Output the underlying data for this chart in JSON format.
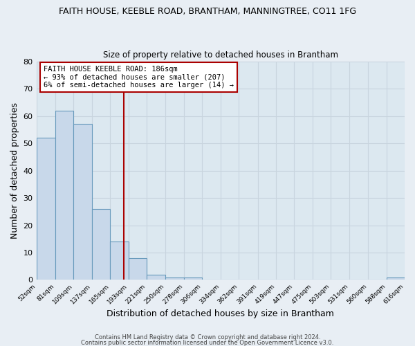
{
  "title": "FAITH HOUSE, KEEBLE ROAD, BRANTHAM, MANNINGTREE, CO11 1FG",
  "subtitle": "Size of property relative to detached houses in Brantham",
  "xlabel": "Distribution of detached houses by size in Brantham",
  "ylabel": "Number of detached properties",
  "bar_edges": [
    52,
    81,
    109,
    137,
    165,
    193,
    221,
    250,
    278,
    306,
    334,
    362,
    391,
    419,
    447,
    475,
    503,
    531,
    560,
    588,
    616
  ],
  "bar_heights": [
    52,
    62,
    57,
    26,
    14,
    8,
    2,
    1,
    1,
    0,
    0,
    0,
    0,
    0,
    0,
    0,
    0,
    0,
    0,
    1
  ],
  "bar_color": "#c8d8ea",
  "bar_edgecolor": "#6699bb",
  "vline_x": 186,
  "vline_color": "#aa0000",
  "annotation_box_color": "#aa0000",
  "annotation_title": "FAITH HOUSE KEEBLE ROAD: 186sqm",
  "annotation_line2": "← 93% of detached houses are smaller (207)",
  "annotation_line3": "6% of semi-detached houses are larger (14) →",
  "ylim": [
    0,
    80
  ],
  "yticks": [
    0,
    10,
    20,
    30,
    40,
    50,
    60,
    70,
    80
  ],
  "tick_labels": [
    "52sqm",
    "81sqm",
    "109sqm",
    "137sqm",
    "165sqm",
    "193sqm",
    "221sqm",
    "250sqm",
    "278sqm",
    "306sqm",
    "334sqm",
    "362sqm",
    "391sqm",
    "419sqm",
    "447sqm",
    "475sqm",
    "503sqm",
    "531sqm",
    "560sqm",
    "588sqm",
    "616sqm"
  ],
  "footer1": "Contains HM Land Registry data © Crown copyright and database right 2024.",
  "footer2": "Contains public sector information licensed under the Open Government Licence v3.0.",
  "bg_color": "#e8eef4",
  "grid_color": "#c8d4de",
  "plot_bg_color": "#dce8f0"
}
